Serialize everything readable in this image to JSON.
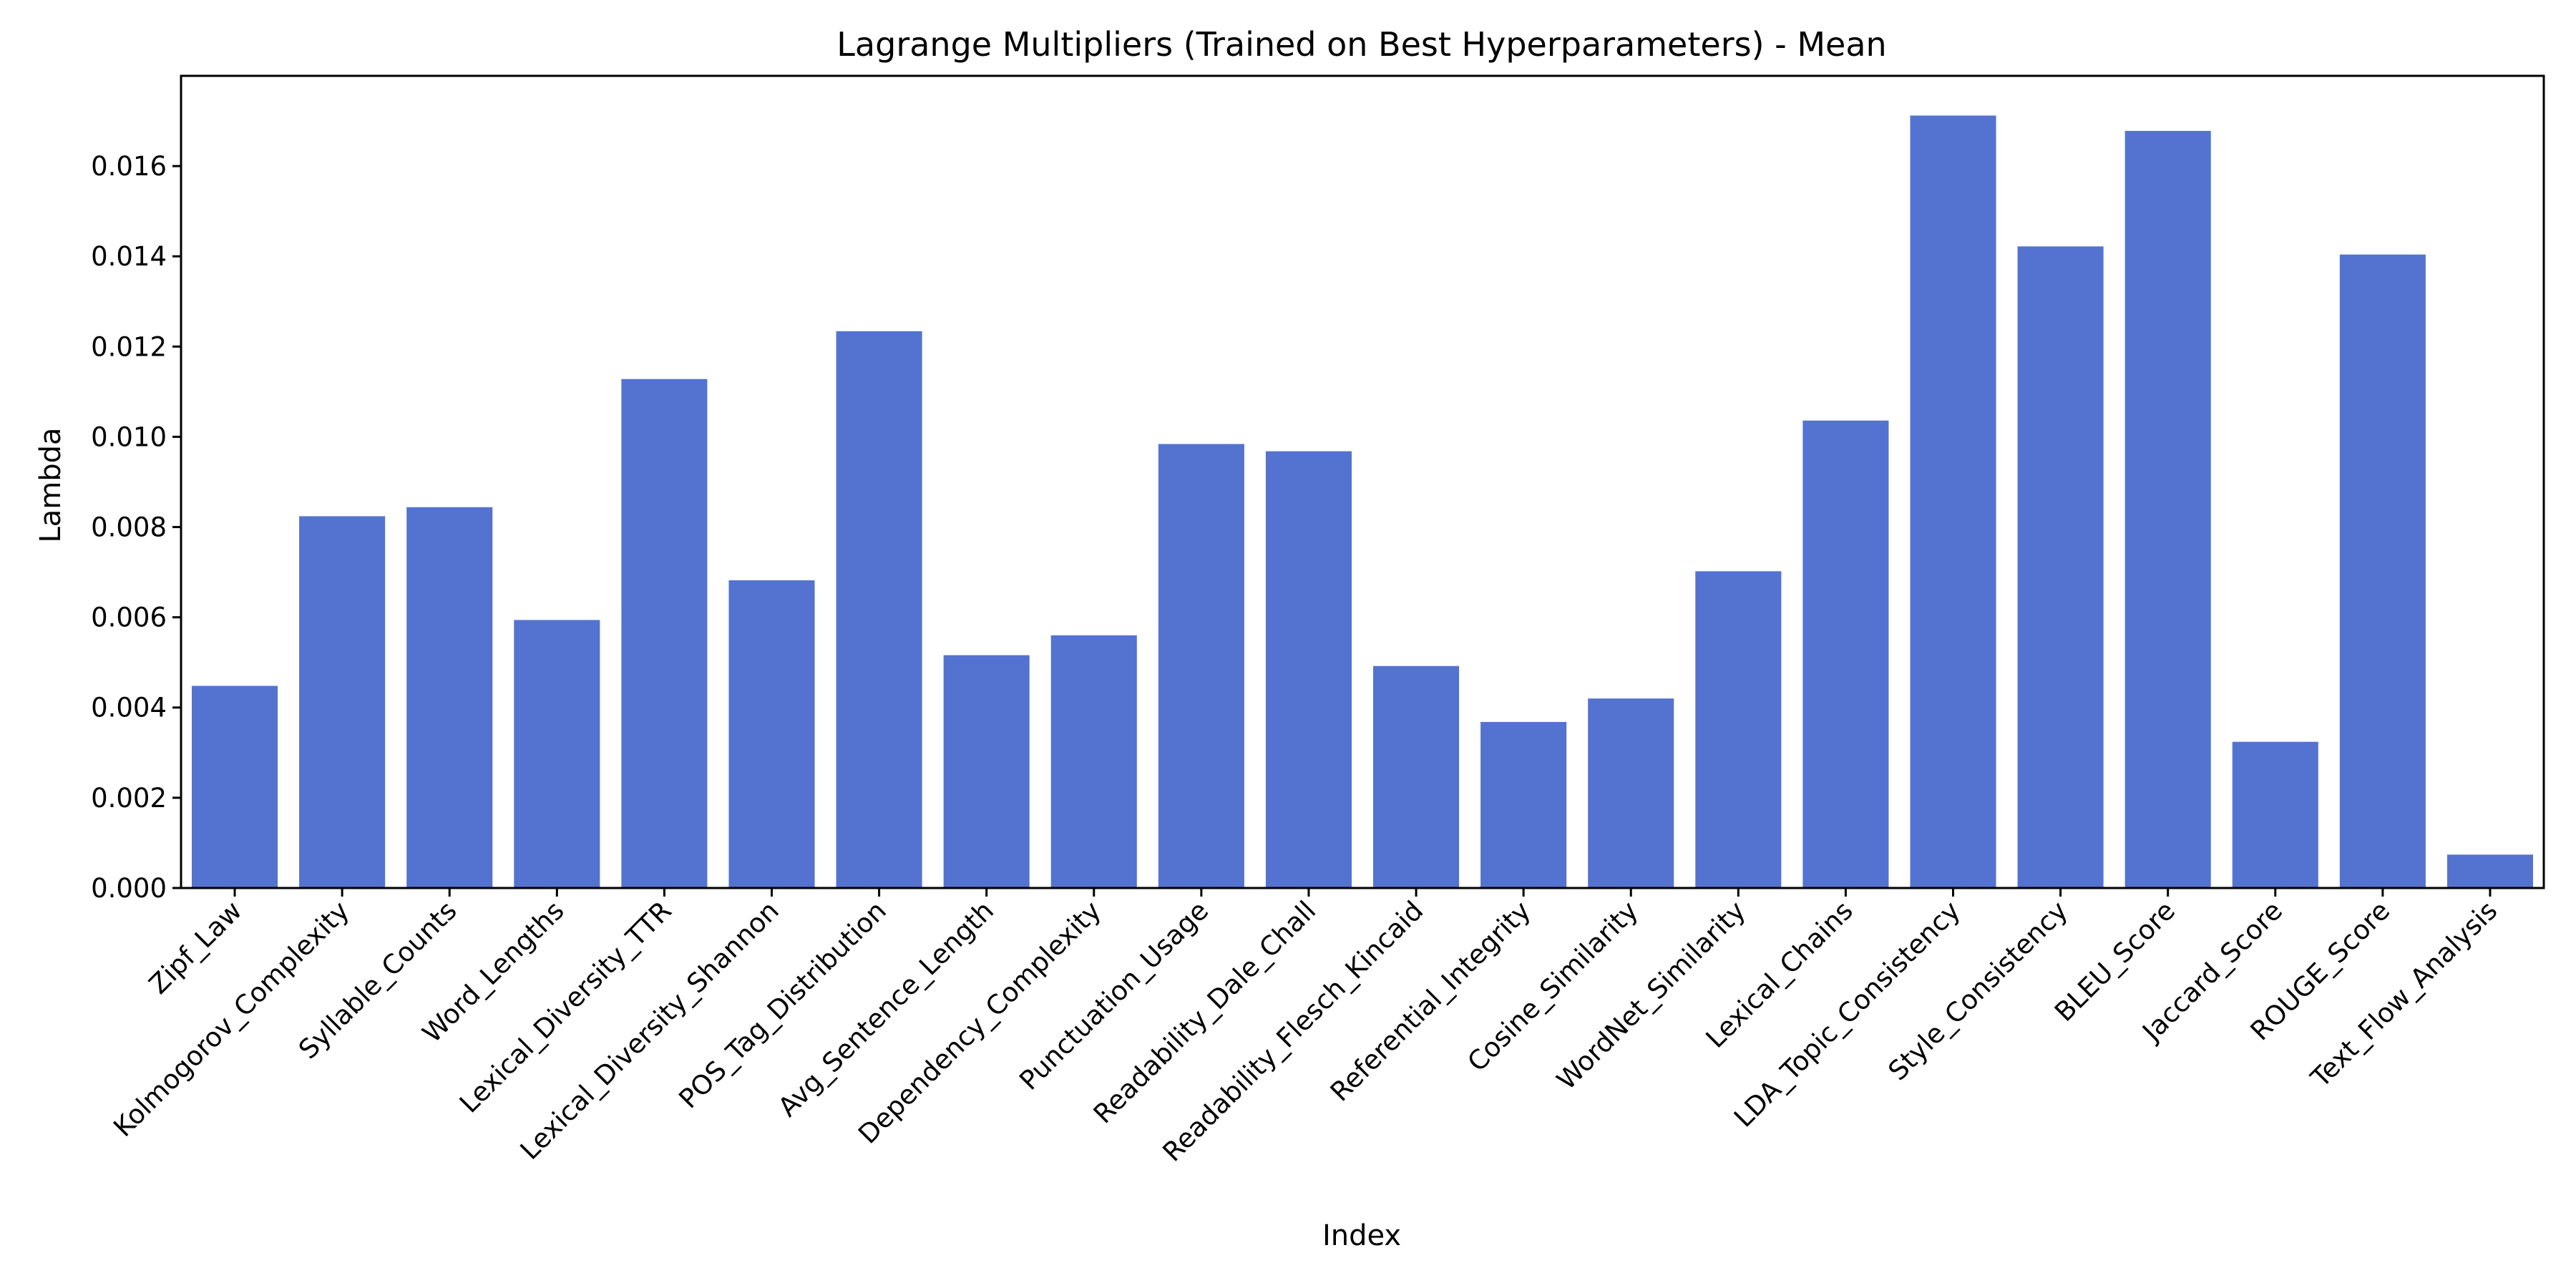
{
  "chart_data": {
    "type": "bar",
    "title": "Lagrange Multipliers (Trained on Best Hyperparameters) - Mean",
    "xlabel": "Index",
    "ylabel": "Lambda",
    "ylim": [
      0,
      0.018
    ],
    "yticks": [
      "0.000",
      "0.002",
      "0.004",
      "0.006",
      "0.008",
      "0.010",
      "0.012",
      "0.014",
      "0.016"
    ],
    "categories": [
      "Zipf_Law",
      "Kolmogorov_Complexity",
      "Syllable_Counts",
      "Word_Lengths",
      "Lexical_Diversity_TTR",
      "Lexical_Diversity_Shannon",
      "POS_Tag_Distribution",
      "Avg_Sentence_Length",
      "Dependency_Complexity",
      "Punctuation_Usage",
      "Readability_Dale_Chall",
      "Readability_Flesch_Kincaid",
      "Referential_Integrity",
      "Cosine_Similarity",
      "WordNet_Similarity",
      "Lexical_Chains",
      "LDA_Topic_Consistency",
      "Style_Consistency",
      "BLEU_Score",
      "Jaccard_Score",
      "ROUGE_Score",
      "Text_Flow_Analysis"
    ],
    "values": [
      0.00448,
      0.00824,
      0.00844,
      0.00594,
      0.01128,
      0.00682,
      0.01234,
      0.00516,
      0.0056,
      0.00984,
      0.00968,
      0.00492,
      0.00368,
      0.0042,
      0.00702,
      0.01036,
      0.01712,
      0.01422,
      0.01678,
      0.00324,
      0.01404,
      0.00074
    ],
    "bar_color": "#5473d0",
    "grid": false,
    "legend": "none"
  }
}
